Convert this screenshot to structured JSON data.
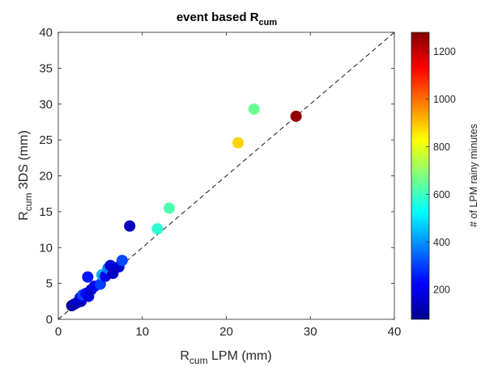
{
  "chart_data": {
    "type": "scatter",
    "title": {
      "main": "event based R",
      "sub": "cum"
    },
    "xlabel": {
      "base": "R",
      "sub": "cum",
      "rest": " LPM (mm)"
    },
    "ylabel": {
      "base": "R",
      "sub": "cum",
      "rest": " 3DS (mm)"
    },
    "xlim": [
      0,
      40
    ],
    "ylim": [
      0,
      40
    ],
    "xticks": [
      "0",
      "10",
      "20",
      "30",
      "40"
    ],
    "yticks": [
      "0",
      "5",
      "10",
      "15",
      "20",
      "25",
      "30",
      "35",
      "40"
    ],
    "reference_line": {
      "type": "1:1",
      "style": "dashed",
      "color": "#000000"
    },
    "grid": false,
    "colorbar": {
      "label": "# of LPM rainy minutes",
      "colormap": "jet",
      "range": [
        75,
        1280
      ],
      "ticks": [
        "200",
        "400",
        "600",
        "800",
        "1000",
        "1200"
      ],
      "placement": "right"
    },
    "points": [
      {
        "x": 1.6,
        "y": 1.9,
        "c": 110
      },
      {
        "x": 1.9,
        "y": 2.1,
        "c": 120
      },
      {
        "x": 2.2,
        "y": 2.3,
        "c": 150
      },
      {
        "x": 2.5,
        "y": 2.6,
        "c": 170
      },
      {
        "x": 2.7,
        "y": 2.5,
        "c": 130
      },
      {
        "x": 2.6,
        "y": 3.0,
        "c": 180
      },
      {
        "x": 2.9,
        "y": 3.4,
        "c": 310
      },
      {
        "x": 3.3,
        "y": 3.6,
        "c": 240
      },
      {
        "x": 3.6,
        "y": 3.2,
        "c": 190
      },
      {
        "x": 3.9,
        "y": 4.1,
        "c": 160
      },
      {
        "x": 3.5,
        "y": 5.9,
        "c": 250
      },
      {
        "x": 4.3,
        "y": 4.6,
        "c": 220
      },
      {
        "x": 5.0,
        "y": 4.9,
        "c": 300
      },
      {
        "x": 5.2,
        "y": 6.2,
        "c": 430
      },
      {
        "x": 5.6,
        "y": 6.0,
        "c": 200
      },
      {
        "x": 5.9,
        "y": 7.1,
        "c": 380
      },
      {
        "x": 6.2,
        "y": 7.5,
        "c": 180
      },
      {
        "x": 6.5,
        "y": 6.4,
        "c": 150
      },
      {
        "x": 7.2,
        "y": 7.3,
        "c": 170
      },
      {
        "x": 7.6,
        "y": 8.2,
        "c": 310
      },
      {
        "x": 8.5,
        "y": 13.0,
        "c": 150
      },
      {
        "x": 11.8,
        "y": 12.6,
        "c": 580
      },
      {
        "x": 13.2,
        "y": 15.5,
        "c": 620
      },
      {
        "x": 21.4,
        "y": 24.6,
        "c": 880
      },
      {
        "x": 23.3,
        "y": 29.3,
        "c": 650
      },
      {
        "x": 28.3,
        "y": 28.3,
        "c": 1260
      }
    ]
  }
}
